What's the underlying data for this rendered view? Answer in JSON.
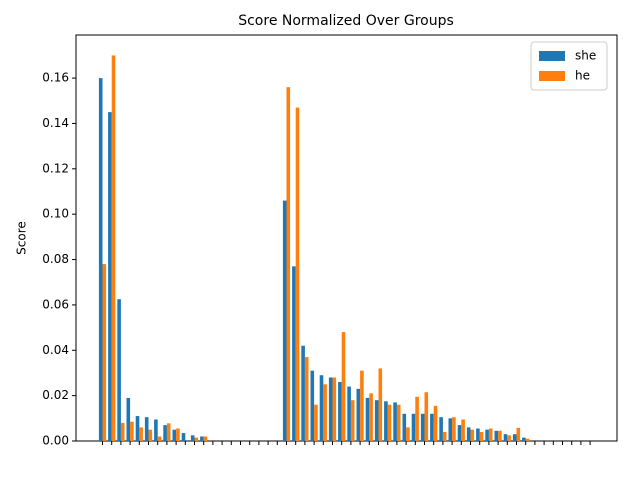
{
  "chart_data": {
    "type": "bar",
    "title": "Score Normalized Over Groups",
    "ylabel": "Score",
    "categories": [
      null,
      null,
      null,
      null,
      null,
      null,
      null,
      null,
      null,
      null,
      null,
      null,
      null,
      null,
      null,
      null,
      null,
      null,
      null,
      null,
      null,
      null,
      null,
      null,
      null,
      null,
      null,
      null,
      null,
      null,
      null,
      null,
      null,
      null,
      null,
      null,
      null,
      null,
      null,
      null,
      null,
      null,
      null,
      null,
      null,
      null,
      null,
      null,
      null,
      null,
      null,
      null,
      null,
      null
    ],
    "series": [
      {
        "name": "she",
        "color": "#1f77b4",
        "values": [
          0.16,
          0.145,
          0.0625,
          0.019,
          0.011,
          0.0105,
          0.0095,
          0.007,
          0.005,
          0.0035,
          0.0025,
          0.002,
          0,
          0,
          0,
          0,
          0,
          0,
          0,
          0,
          0.106,
          0.077,
          0.042,
          0.031,
          0.029,
          0.028,
          0.026,
          0.024,
          0.023,
          0.019,
          0.018,
          0.0175,
          0.017,
          0.012,
          0.012,
          0.012,
          0.012,
          0.0105,
          0.01,
          0.007,
          0.006,
          0.0055,
          0.005,
          0.0045,
          0.003,
          0.003,
          0.0015,
          0,
          0,
          0,
          0,
          0,
          0,
          0
        ]
      },
      {
        "name": "he",
        "color": "#ff7f0e",
        "values": [
          0.078,
          0.17,
          0.008,
          0.0085,
          0.006,
          0.005,
          0.002,
          0.0078,
          0.0055,
          0,
          0.0015,
          0.002,
          0,
          0,
          0,
          0,
          0,
          0,
          0,
          0,
          0.156,
          0.147,
          0.037,
          0.016,
          0.025,
          0.028,
          0.048,
          0.018,
          0.031,
          0.021,
          0.032,
          0.016,
          0.016,
          0.006,
          0.0195,
          0.0215,
          0.0155,
          0.004,
          0.0105,
          0.0095,
          0.005,
          0.004,
          0.0055,
          0.0045,
          0.0025,
          0.0058,
          0.001,
          0,
          0,
          0,
          0,
          0,
          0,
          0
        ]
      }
    ],
    "ylim": [
      0,
      0.179
    ],
    "yticks": [
      {
        "value": 0,
        "label": "0.00"
      },
      {
        "value": 0.02,
        "label": "0.02"
      },
      {
        "value": 0.04,
        "label": "0.04"
      },
      {
        "value": 0.06,
        "label": "0.06"
      },
      {
        "value": 0.08,
        "label": "0.08"
      },
      {
        "value": 0.1,
        "label": "0.10"
      },
      {
        "value": 0.12,
        "label": "0.12"
      },
      {
        "value": 0.14,
        "label": "0.14"
      },
      {
        "value": 0.16,
        "label": "0.16"
      }
    ],
    "legend": "upper right"
  }
}
